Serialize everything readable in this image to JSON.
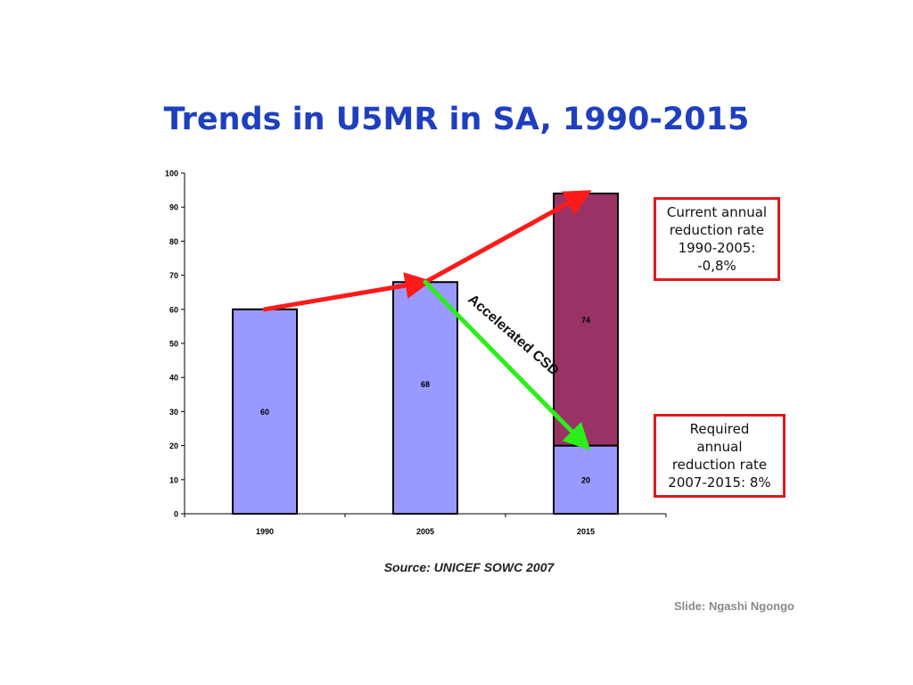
{
  "title": "Trends in U5MR in SA, 1990-2015",
  "chart_data": {
    "type": "bar",
    "categories": [
      "1990",
      "2005",
      "2015"
    ],
    "series": [
      {
        "values": [
          60,
          68,
          20
        ],
        "color": "#9999ff"
      },
      {
        "values": [
          null,
          null,
          74
        ],
        "color": "#993366"
      }
    ],
    "data_labels": [
      "60",
      "68",
      "74",
      "20"
    ],
    "ylim": [
      0,
      100
    ],
    "yticks": [
      0,
      10,
      20,
      30,
      40,
      50,
      60,
      70,
      80,
      90,
      100
    ],
    "stacked": true,
    "arrows": [
      {
        "color": "#ff1a1a",
        "from": [
          "1990",
          60
        ],
        "to": [
          "2005",
          68
        ]
      },
      {
        "color": "#ff1a1a",
        "from": [
          "2005",
          68
        ],
        "to": [
          "2015",
          94
        ]
      },
      {
        "color": "#2bee1a",
        "from": [
          "2005",
          68
        ],
        "to": [
          "2015",
          20
        ]
      }
    ],
    "annotation": "Accelerated CSD"
  },
  "callouts": {
    "current": "Current annual\nreduction rate\n1990-2005:\n-0,8%",
    "required": "Required\nannual\nreduction rate\n2007-2015: 8%"
  },
  "source": "Source: UNICEF SOWC 2007",
  "credit": "Slide: Ngashi Ngongo"
}
